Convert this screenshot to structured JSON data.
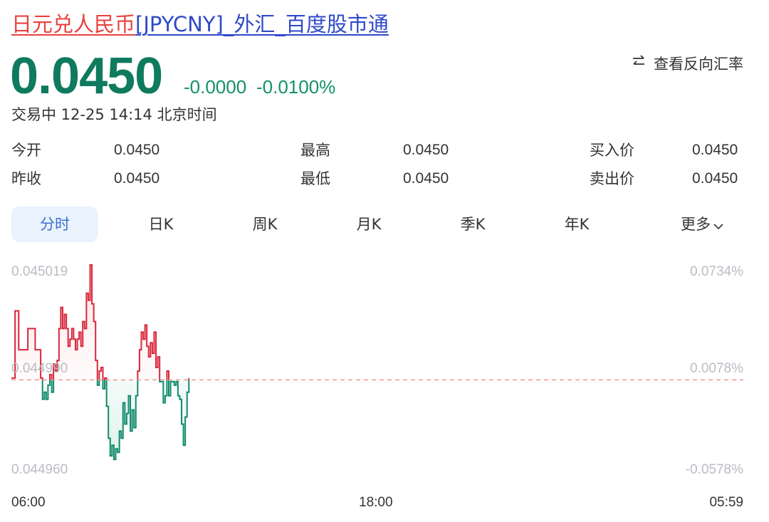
{
  "header": {
    "title_red": "日元兑人民币",
    "title_blue": "[JPYCNY]_外汇_百度股市通"
  },
  "quote": {
    "price": "0.0450",
    "change": "-0.0000",
    "change_pct": "-0.0100%",
    "reverse_label": "查看反向汇率",
    "status": "交易中 12-25 14:14 北京时间"
  },
  "stats": {
    "open_label": "今开",
    "open": "0.0450",
    "prev_label": "昨收",
    "prev": "0.0450",
    "high_label": "最高",
    "high": "0.0450",
    "low_label": "最低",
    "low": "0.0450",
    "bid_label": "买入价",
    "bid": "0.0450",
    "ask_label": "卖出价",
    "ask": "0.0450"
  },
  "tabs": [
    "分时",
    "日K",
    "周K",
    "月K",
    "季K",
    "年K",
    "更多"
  ],
  "colors": {
    "up": "#d9263a",
    "down": "#0f8a6a",
    "baseline": "#f08c8c",
    "accent": "#3a6fd0"
  },
  "chart_data": {
    "type": "line",
    "y_left_ticks": [
      "0.045019",
      "0.044990",
      "0.044960"
    ],
    "y_right_ticks": [
      "0.0734%",
      "0.0078%",
      "-0.0578%"
    ],
    "x_ticks": [
      "06:00",
      "18:00",
      "05:59"
    ],
    "ylim": [
      0.04496,
      0.045019
    ],
    "baseline": 0.0449865,
    "series": [
      {
        "values": [
          0.044987,
          0.044987,
          0.045006,
          0.045006,
          0.044995,
          0.044995,
          0.044995,
          0.044995,
          0.044995,
          0.045001,
          0.045001,
          0.045001,
          0.045001,
          0.044995,
          0.044995,
          0.044995,
          0.044987,
          0.044981,
          0.044983,
          0.044981,
          0.044985,
          0.044988,
          0.044983,
          0.044991,
          0.044989,
          0.044992,
          0.045001,
          0.045007,
          0.045001,
          0.045005,
          0.045001,
          0.044996,
          0.044998,
          0.045001,
          0.044998,
          0.044995,
          0.044998,
          0.045,
          0.044996,
          0.045003,
          0.045001,
          0.045011,
          0.045009,
          0.045019,
          0.045008,
          0.045003,
          0.044992,
          0.044985,
          0.044989,
          0.04499,
          0.044984,
          0.044987,
          0.044979,
          0.04497,
          0.044965,
          0.044968,
          0.044964,
          0.044967,
          0.044966,
          0.044972,
          0.04497,
          0.04498,
          0.044974,
          0.044977,
          0.044982,
          0.044972,
          0.044978,
          0.044973,
          0.044982,
          0.044989,
          0.044995,
          0.045,
          0.044998,
          0.045002,
          0.044996,
          0.044993,
          0.044997,
          0.044994,
          0.045,
          0.04499,
          0.044993,
          0.044986,
          0.044986,
          0.04498,
          0.044982,
          0.044989,
          0.044982,
          0.044986,
          0.044986,
          0.044985,
          0.044986,
          0.044982,
          0.044981,
          0.044974,
          0.044968,
          0.044976,
          0.044983,
          0.044987
        ]
      }
    ]
  }
}
